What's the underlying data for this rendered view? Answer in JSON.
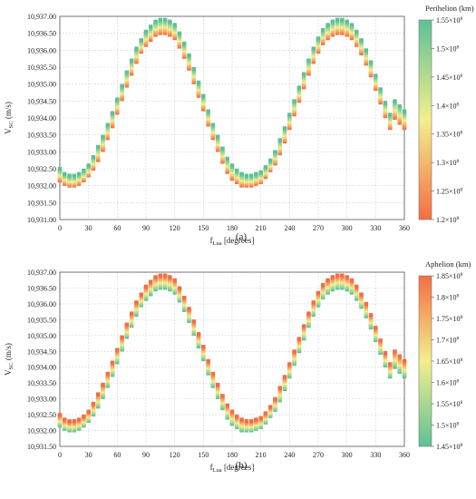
{
  "chart_data": [
    {
      "type": "scatter",
      "panel_caption": "(a)",
      "xlabel_main": "f",
      "xlabel_sub": "Lua",
      "xlabel_units": " [degrees]",
      "ylabel_main": "V",
      "ylabel_sub": "SC",
      "ylabel_units": " (m/s)",
      "xlim": [
        0,
        360
      ],
      "ylim": [
        10931.0,
        10937.0
      ],
      "x_ticks": [
        "0",
        "30",
        "60",
        "90",
        "120",
        "150",
        "180",
        "210",
        "240",
        "270",
        "300",
        "330",
        "360"
      ],
      "y_ticks": [
        "10,931.00",
        "10,931.50",
        "10,932.00",
        "10,932.50",
        "10,933.00",
        "10,933.50",
        "10,934.00",
        "10,934.50",
        "10,935.00",
        "10,935.50",
        "10,936.00",
        "10,936.50",
        "10,937.00"
      ],
      "grid": true,
      "colorbar": {
        "title": "Perihelion (km)",
        "range": [
          120000000.0,
          155000000.0
        ],
        "tick_mantissas": [
          "1.2",
          "1.25",
          "1.3",
          "1.35",
          "1.4",
          "1.45",
          "1.5",
          "1.55"
        ],
        "tick_exponent": "8",
        "colors": {
          "low": "#f46d43",
          "mid": "#f3ef8c",
          "high": "#5dc196"
        },
        "placement": "right"
      },
      "series": [
        {
          "x": [
            0,
            5,
            10,
            15,
            20,
            25,
            30,
            35,
            40,
            45,
            50,
            55,
            60,
            65,
            70,
            75,
            80,
            85,
            90,
            95,
            100,
            105,
            110,
            115,
            120,
            125,
            130,
            135,
            140,
            145,
            150,
            155,
            160,
            165,
            170,
            175,
            180,
            185,
            190,
            195,
            200,
            205,
            210,
            215,
            220,
            225,
            230,
            235,
            240,
            245,
            250,
            255,
            260,
            265,
            270,
            275,
            280,
            285,
            290,
            295,
            300,
            305,
            310,
            315,
            320,
            325,
            330,
            335,
            340,
            345,
            350,
            355,
            360
          ],
          "y_max": [
            10932.5,
            10932.35,
            10932.3,
            10932.3,
            10932.35,
            10932.45,
            10932.6,
            10932.85,
            10933.15,
            10933.45,
            10933.8,
            10934.15,
            10934.55,
            10934.95,
            10935.35,
            10935.7,
            10936.05,
            10936.3,
            10936.55,
            10936.7,
            10936.85,
            10936.9,
            10936.9,
            10936.85,
            10936.75,
            10936.5,
            10936.2,
            10935.85,
            10935.45,
            10935.05,
            10934.65,
            10934.2,
            10933.8,
            10933.45,
            10933.1,
            10932.8,
            10932.6,
            10932.45,
            10932.35,
            10932.3,
            10932.3,
            10932.35,
            10932.4,
            10932.55,
            10932.75,
            10933.0,
            10933.35,
            10933.7,
            10934.1,
            10934.5,
            10934.9,
            10935.3,
            10935.7,
            10936.05,
            10936.35,
            10936.6,
            10936.75,
            10936.85,
            10936.9,
            10936.9,
            10936.85,
            10936.75,
            10936.55,
            10936.3,
            10936.0,
            10935.65,
            10935.25,
            10934.85,
            10934.45,
            10934.1,
            10934.5,
            10934.35,
            10934.2
          ],
          "y_min": [
            10932.15,
            10932.05,
            10932.0,
            10932.0,
            10932.05,
            10932.15,
            10932.3,
            10932.5,
            10932.75,
            10933.05,
            10933.4,
            10933.75,
            10934.15,
            10934.55,
            10934.95,
            10935.3,
            10935.65,
            10935.95,
            10936.15,
            10936.3,
            10936.45,
            10936.5,
            10936.5,
            10936.45,
            10936.35,
            10936.1,
            10935.8,
            10935.45,
            10935.05,
            10934.65,
            10934.25,
            10933.8,
            10933.4,
            10933.05,
            10932.7,
            10932.4,
            10932.2,
            10932.1,
            10932.0,
            10932.0,
            10932.0,
            10932.05,
            10932.1,
            10932.25,
            10932.45,
            10932.65,
            10932.95,
            10933.3,
            10933.7,
            10934.1,
            10934.5,
            10934.9,
            10935.3,
            10935.65,
            10935.95,
            10936.2,
            10936.35,
            10936.45,
            10936.5,
            10936.5,
            10936.45,
            10936.35,
            10936.15,
            10935.9,
            10935.6,
            10935.25,
            10934.85,
            10934.45,
            10934.05,
            10933.7,
            10934.0,
            10933.85,
            10933.7
          ]
        }
      ]
    },
    {
      "type": "scatter",
      "panel_caption": "(b)",
      "xlabel_main": "f",
      "xlabel_sub": "Lua",
      "xlabel_units": " [degrees]",
      "ylabel_main": "V",
      "ylabel_sub": "SC",
      "ylabel_units": " (m/s)",
      "xlim": [
        0,
        360
      ],
      "ylim": [
        10931.5,
        10937.0
      ],
      "x_ticks": [
        "0",
        "30",
        "60",
        "90",
        "120",
        "150",
        "180",
        "210",
        "240",
        "270",
        "300",
        "330",
        "360"
      ],
      "y_ticks": [
        "10,931.50",
        "10,932.00",
        "10,932.50",
        "10,933.00",
        "10,933.50",
        "10,934.00",
        "10,934.50",
        "10,935.00",
        "10,935.50",
        "10,936.00",
        "10,936.50",
        "10,937.00"
      ],
      "grid": true,
      "colorbar": {
        "title": "Aphelion (km)",
        "range": [
          145000000.0,
          185000000.0
        ],
        "tick_mantissas": [
          "1.45",
          "1.5",
          "1.55",
          "1.6",
          "1.65",
          "1.7",
          "1.75",
          "1.8",
          "1.85"
        ],
        "tick_exponent": "8",
        "colors": {
          "low": "#5dc196",
          "mid": "#f3ef8c",
          "high": "#f46d43"
        },
        "placement": "right"
      },
      "series": [
        {
          "x": [
            0,
            5,
            10,
            15,
            20,
            25,
            30,
            35,
            40,
            45,
            50,
            55,
            60,
            65,
            70,
            75,
            80,
            85,
            90,
            95,
            100,
            105,
            110,
            115,
            120,
            125,
            130,
            135,
            140,
            145,
            150,
            155,
            160,
            165,
            170,
            175,
            180,
            185,
            190,
            195,
            200,
            205,
            210,
            215,
            220,
            225,
            230,
            235,
            240,
            245,
            250,
            255,
            260,
            265,
            270,
            275,
            280,
            285,
            290,
            295,
            300,
            305,
            310,
            315,
            320,
            325,
            330,
            335,
            340,
            345,
            350,
            355,
            360
          ],
          "y_max": [
            10932.5,
            10932.35,
            10932.3,
            10932.3,
            10932.35,
            10932.45,
            10932.6,
            10932.85,
            10933.15,
            10933.45,
            10933.8,
            10934.15,
            10934.55,
            10934.95,
            10935.35,
            10935.7,
            10936.05,
            10936.3,
            10936.55,
            10936.7,
            10936.85,
            10936.9,
            10936.9,
            10936.85,
            10936.75,
            10936.5,
            10936.2,
            10935.85,
            10935.45,
            10935.05,
            10934.65,
            10934.2,
            10933.8,
            10933.45,
            10933.1,
            10932.8,
            10932.6,
            10932.45,
            10932.35,
            10932.3,
            10932.3,
            10932.35,
            10932.4,
            10932.55,
            10932.75,
            10933.0,
            10933.35,
            10933.7,
            10934.1,
            10934.5,
            10934.9,
            10935.3,
            10935.7,
            10936.05,
            10936.35,
            10936.6,
            10936.75,
            10936.85,
            10936.9,
            10936.9,
            10936.85,
            10936.75,
            10936.55,
            10936.3,
            10936.0,
            10935.65,
            10935.25,
            10934.85,
            10934.45,
            10934.1,
            10934.5,
            10934.35,
            10934.2
          ],
          "y_min": [
            10932.15,
            10932.05,
            10932.0,
            10932.0,
            10932.05,
            10932.15,
            10932.3,
            10932.5,
            10932.75,
            10933.05,
            10933.4,
            10933.75,
            10934.15,
            10934.55,
            10934.95,
            10935.3,
            10935.65,
            10935.95,
            10936.15,
            10936.3,
            10936.45,
            10936.5,
            10936.5,
            10936.45,
            10936.35,
            10936.1,
            10935.8,
            10935.45,
            10935.05,
            10934.65,
            10934.25,
            10933.8,
            10933.4,
            10933.05,
            10932.7,
            10932.4,
            10932.2,
            10932.1,
            10932.0,
            10932.0,
            10932.0,
            10932.05,
            10932.1,
            10932.25,
            10932.45,
            10932.65,
            10932.95,
            10933.3,
            10933.7,
            10934.1,
            10934.5,
            10934.9,
            10935.3,
            10935.65,
            10935.95,
            10936.2,
            10936.35,
            10936.45,
            10936.5,
            10936.5,
            10936.45,
            10936.35,
            10936.15,
            10935.9,
            10935.6,
            10935.25,
            10934.85,
            10934.45,
            10934.05,
            10933.7,
            10934.0,
            10933.85,
            10933.7
          ]
        }
      ]
    }
  ]
}
